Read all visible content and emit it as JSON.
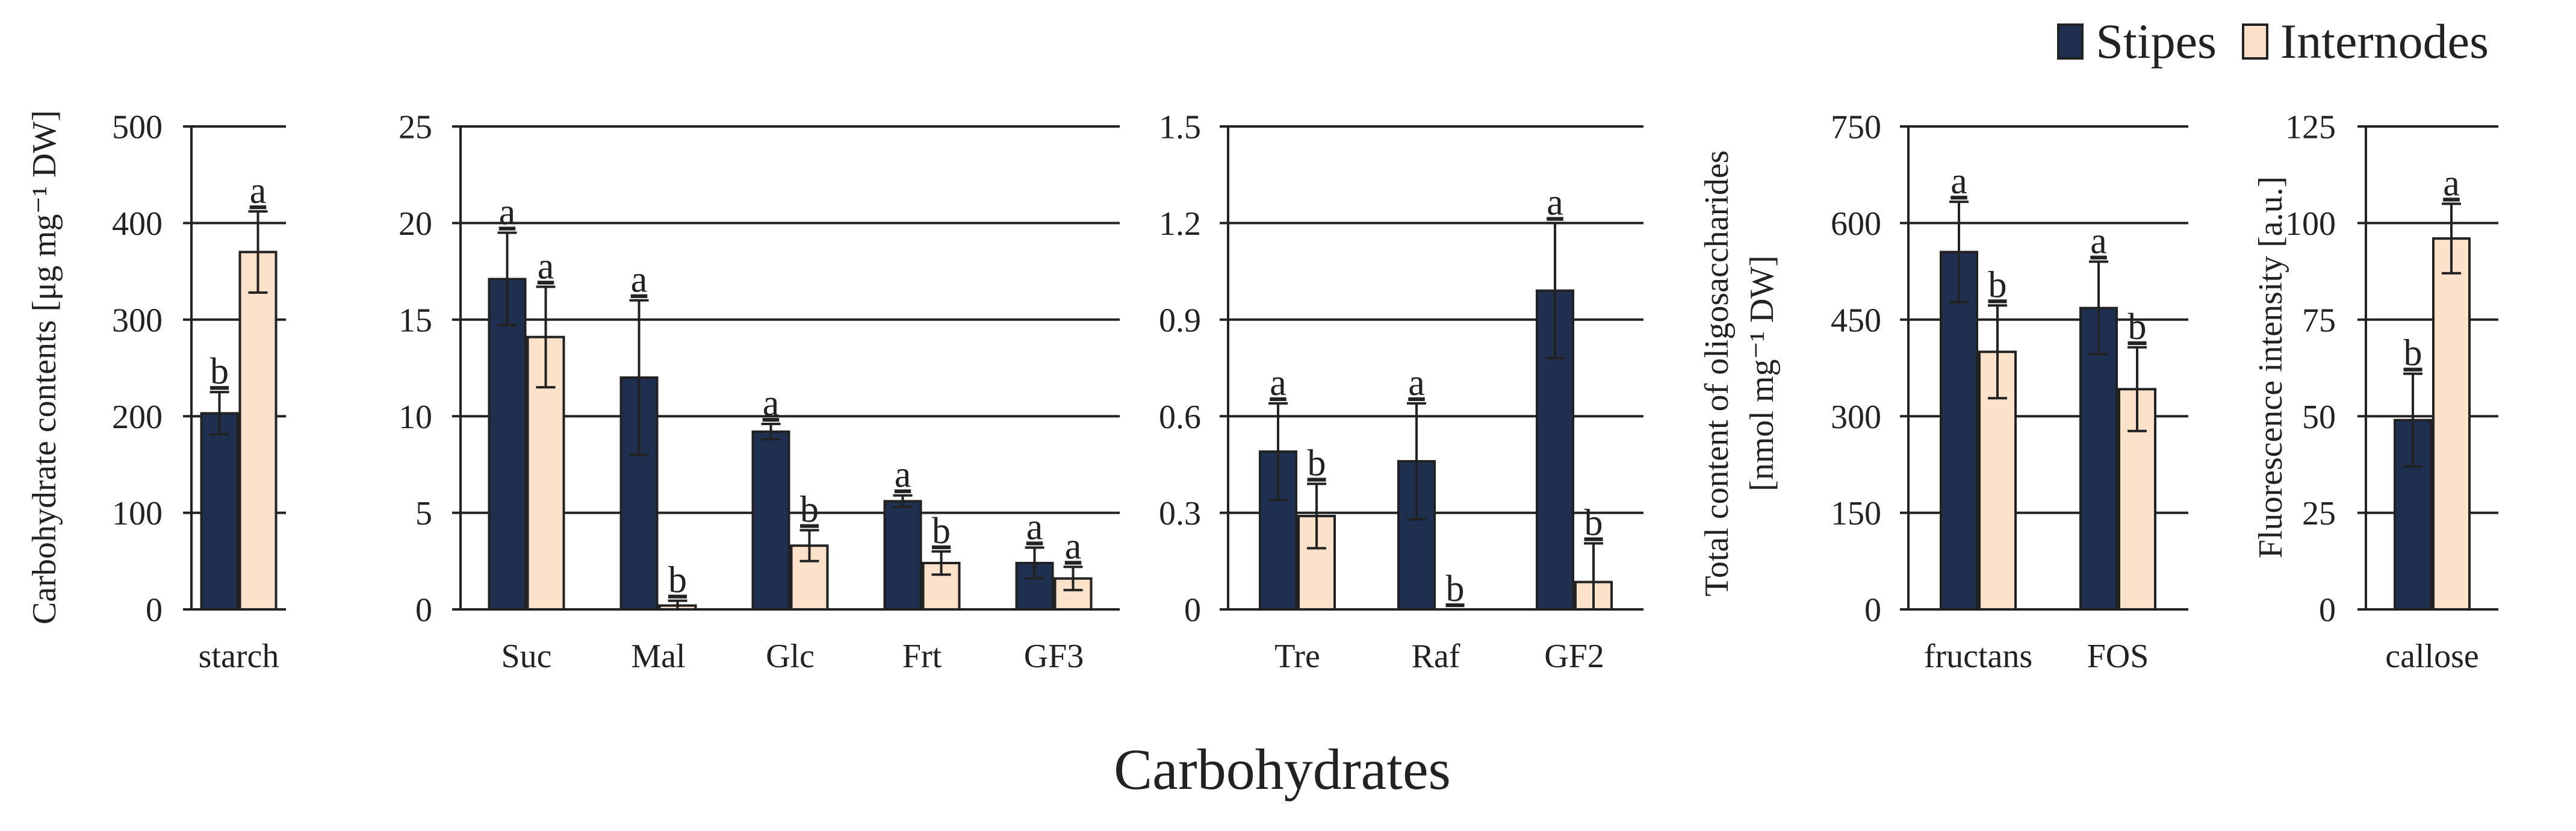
{
  "legend": {
    "stipes": {
      "label": "Stipes",
      "color": "#1f2f4f"
    },
    "internodes": {
      "label": "Internodes",
      "color": "#fbe1c9"
    }
  },
  "figure": {
    "xlabel": "Carbohydrates"
  },
  "chart_data": [
    {
      "type": "bar",
      "ylabel": "Carbohydrate contents [μg mg⁻¹ DW]",
      "ylim": [
        0,
        500
      ],
      "yticks": [
        0,
        100,
        200,
        300,
        400,
        500
      ],
      "ytick_labels": [
        "0",
        "100",
        "200",
        "300",
        "400",
        "500"
      ],
      "grid": true,
      "categories": [
        "starch"
      ],
      "series": [
        {
          "name": "Stipes",
          "values": [
            203
          ],
          "errors": [
            22
          ],
          "letters": [
            "b"
          ]
        },
        {
          "name": "Internodes",
          "values": [
            370
          ],
          "errors": [
            42
          ],
          "letters": [
            "a"
          ]
        }
      ]
    },
    {
      "type": "bar",
      "ylabel": "",
      "ylim": [
        0,
        25
      ],
      "yticks": [
        0,
        5,
        10,
        15,
        20,
        25
      ],
      "ytick_labels": [
        "0",
        "5",
        "10",
        "15",
        "20",
        "25"
      ],
      "grid": true,
      "categories": [
        "Suc",
        "Mal",
        "Glc",
        "Frt",
        "GF3"
      ],
      "series": [
        {
          "name": "Stipes",
          "values": [
            17.1,
            12.0,
            9.2,
            5.6,
            2.4
          ],
          "errors": [
            2.4,
            4.0,
            0.4,
            0.3,
            0.8
          ],
          "letters": [
            "a",
            "a",
            "a",
            "a",
            "a"
          ]
        },
        {
          "name": "Internodes",
          "values": [
            14.1,
            0.2,
            3.3,
            2.4,
            1.6
          ],
          "errors": [
            2.6,
            0.25,
            0.8,
            0.6,
            0.6
          ],
          "letters": [
            "a",
            "b",
            "b",
            "b",
            "a"
          ]
        }
      ]
    },
    {
      "type": "bar",
      "ylabel": "",
      "ylim": [
        0,
        1.5
      ],
      "yticks": [
        0,
        0.3,
        0.6,
        0.9,
        1.2,
        1.5
      ],
      "ytick_labels": [
        "0",
        "0.3",
        "0.6",
        "0.9",
        "1.2",
        "1.5"
      ],
      "grid": true,
      "categories": [
        "Tre",
        "Raf",
        "GF2"
      ],
      "series": [
        {
          "name": "Stipes",
          "values": [
            0.49,
            0.46,
            0.99
          ],
          "errors": [
            0.15,
            0.18,
            0.21
          ],
          "letters": [
            "a",
            "a",
            "a"
          ]
        },
        {
          "name": "Internodes",
          "values": [
            0.29,
            0.0,
            0.085
          ],
          "errors": [
            0.1,
            0.0,
            0.12
          ],
          "letters": [
            "b",
            "b",
            "b"
          ]
        }
      ]
    },
    {
      "type": "bar",
      "ylabel": "Total content of oligosaccharides",
      "ylabel2": "[nmol mg⁻¹ DW]",
      "ylim": [
        0,
        750
      ],
      "yticks": [
        0,
        150,
        300,
        450,
        600,
        750
      ],
      "ytick_labels": [
        "0",
        "150",
        "300",
        "450",
        "600",
        "750"
      ],
      "grid": true,
      "categories": [
        "fructans",
        "FOS"
      ],
      "series": [
        {
          "name": "Stipes",
          "values": [
            555,
            468
          ],
          "errors": [
            78,
            72
          ],
          "letters": [
            "a",
            "a"
          ]
        },
        {
          "name": "Internodes",
          "values": [
            400,
            342
          ],
          "errors": [
            72,
            65
          ],
          "letters": [
            "b",
            "b"
          ]
        }
      ]
    },
    {
      "type": "bar",
      "ylabel": "Fluorescence intensity [a.u.]",
      "ylim": [
        0,
        125
      ],
      "yticks": [
        0,
        25,
        50,
        75,
        100,
        125
      ],
      "ytick_labels": [
        "0",
        "25",
        "50",
        "75",
        "100",
        "125"
      ],
      "grid": true,
      "categories": [
        "callose"
      ],
      "series": [
        {
          "name": "Stipes",
          "values": [
            49
          ],
          "errors": [
            12
          ],
          "letters": [
            "b"
          ]
        },
        {
          "name": "Internodes",
          "values": [
            96
          ],
          "errors": [
            9
          ],
          "letters": [
            "a"
          ]
        }
      ]
    }
  ]
}
